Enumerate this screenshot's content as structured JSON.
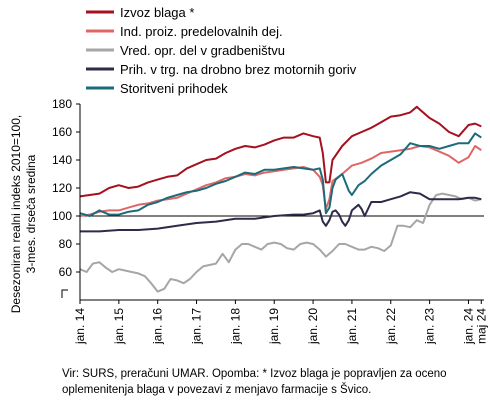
{
  "chart_data": {
    "type": "line",
    "ylabel": "Desezoniran realni indeks 2010=100,\n3-mes. drseča sredina",
    "ylim": [
      40,
      180
    ],
    "yticks": [
      60,
      80,
      100,
      120,
      140,
      160,
      180
    ],
    "xlim": [
      2014.0,
      2024.4
    ],
    "xticks": [
      {
        "x": 2014.0,
        "label": "jan. 14"
      },
      {
        "x": 2015.0,
        "label": "jan. 15"
      },
      {
        "x": 2016.0,
        "label": "jan. 16"
      },
      {
        "x": 2017.0,
        "label": "jan. 17"
      },
      {
        "x": 2018.0,
        "label": "jan. 18"
      },
      {
        "x": 2019.0,
        "label": "jan. 19"
      },
      {
        "x": 2020.0,
        "label": "jan. 20"
      },
      {
        "x": 2021.0,
        "label": "jan. 21"
      },
      {
        "x": 2022.0,
        "label": "jan. 22"
      },
      {
        "x": 2023.0,
        "label": "jan. 23"
      },
      {
        "x": 2024.0,
        "label": "jan. 24"
      },
      {
        "x": 2024.33,
        "label": "maj 24"
      }
    ],
    "reference_line": 100,
    "series": [
      {
        "name": "Izvoz blaga *",
        "color": "#a5111f",
        "x": [
          2014.0,
          2014.25,
          2014.5,
          2014.75,
          2015.0,
          2015.25,
          2015.5,
          2015.75,
          2016.0,
          2016.25,
          2016.5,
          2016.75,
          2017.0,
          2017.25,
          2017.5,
          2017.75,
          2018.0,
          2018.25,
          2018.5,
          2018.75,
          2019.0,
          2019.25,
          2019.5,
          2019.75,
          2020.0,
          2020.17,
          2020.25,
          2020.33,
          2020.42,
          2020.5,
          2020.75,
          2021.0,
          2021.25,
          2021.5,
          2021.75,
          2022.0,
          2022.25,
          2022.5,
          2022.67,
          2022.75,
          2023.0,
          2023.25,
          2023.5,
          2023.75,
          2024.0,
          2024.17,
          2024.33
        ],
        "y": [
          114,
          115,
          116,
          120,
          122,
          120,
          121,
          124,
          126,
          128,
          129,
          134,
          137,
          140,
          141,
          145,
          148,
          150,
          149,
          151,
          154,
          156,
          156,
          159,
          157,
          156,
          145,
          124,
          124,
          140,
          150,
          157,
          160,
          163,
          167,
          171,
          172,
          174,
          178,
          176,
          170,
          166,
          160,
          157,
          165,
          166,
          164
        ]
      },
      {
        "name": "Ind. proiz. predelovalnih dej.",
        "color": "#e06666",
        "x": [
          2014.0,
          2014.25,
          2014.5,
          2014.75,
          2015.0,
          2015.25,
          2015.5,
          2015.75,
          2016.0,
          2016.25,
          2016.5,
          2016.75,
          2017.0,
          2017.25,
          2017.5,
          2017.75,
          2018.0,
          2018.25,
          2018.5,
          2018.75,
          2019.0,
          2019.25,
          2019.5,
          2019.75,
          2020.0,
          2020.17,
          2020.25,
          2020.33,
          2020.42,
          2020.5,
          2020.75,
          2021.0,
          2021.25,
          2021.5,
          2021.75,
          2022.0,
          2022.25,
          2022.5,
          2022.75,
          2023.0,
          2023.25,
          2023.5,
          2023.75,
          2024.0,
          2024.17,
          2024.33
        ],
        "y": [
          100,
          101,
          103,
          104,
          104,
          106,
          108,
          109,
          111,
          112,
          113,
          116,
          119,
          122,
          124,
          127,
          128,
          130,
          129,
          131,
          132,
          133,
          134,
          135,
          133,
          128,
          122,
          105,
          112,
          125,
          130,
          136,
          138,
          141,
          145,
          146,
          147,
          148,
          150,
          149,
          146,
          143,
          138,
          142,
          150,
          147
        ]
      },
      {
        "name": "Vred. opr. del v gradbeništvu",
        "color": "#a6a6a6",
        "x": [
          2014.0,
          2014.17,
          2014.33,
          2014.5,
          2014.67,
          2014.83,
          2015.0,
          2015.17,
          2015.33,
          2015.5,
          2015.67,
          2015.83,
          2016.0,
          2016.17,
          2016.33,
          2016.5,
          2016.67,
          2016.83,
          2017.0,
          2017.17,
          2017.33,
          2017.5,
          2017.67,
          2017.83,
          2018.0,
          2018.17,
          2018.33,
          2018.5,
          2018.67,
          2018.83,
          2019.0,
          2019.17,
          2019.33,
          2019.5,
          2019.67,
          2019.83,
          2020.0,
          2020.17,
          2020.33,
          2020.5,
          2020.67,
          2020.83,
          2021.0,
          2021.17,
          2021.33,
          2021.5,
          2021.67,
          2021.83,
          2022.0,
          2022.17,
          2022.33,
          2022.5,
          2022.67,
          2022.83,
          2023.0,
          2023.17,
          2023.33,
          2023.5,
          2023.67,
          2023.83,
          2024.0,
          2024.17,
          2024.33
        ],
        "y": [
          62,
          60,
          66,
          67,
          63,
          60,
          62,
          61,
          60,
          59,
          57,
          52,
          46,
          48,
          55,
          54,
          52,
          55,
          60,
          64,
          65,
          66,
          73,
          67,
          76,
          80,
          80,
          78,
          76,
          80,
          81,
          80,
          77,
          76,
          80,
          81,
          80,
          76,
          71,
          75,
          80,
          80,
          78,
          76,
          76,
          78,
          77,
          75,
          79,
          93,
          93,
          92,
          97,
          95,
          108,
          115,
          116,
          115,
          114,
          112,
          113,
          111,
          112
        ]
      },
      {
        "name": "Prih. v trg. na drobno brez motornih goriv",
        "color": "#2d2a4a",
        "x": [
          2014.0,
          2014.5,
          2015.0,
          2015.5,
          2016.0,
          2016.5,
          2017.0,
          2017.5,
          2018.0,
          2018.5,
          2019.0,
          2019.5,
          2019.75,
          2020.0,
          2020.17,
          2020.25,
          2020.33,
          2020.42,
          2020.5,
          2020.58,
          2020.67,
          2020.75,
          2020.83,
          2020.92,
          2021.0,
          2021.17,
          2021.25,
          2021.33,
          2021.5,
          2021.75,
          2022.0,
          2022.25,
          2022.5,
          2022.75,
          2023.0,
          2023.25,
          2023.5,
          2023.75,
          2024.0,
          2024.17,
          2024.33
        ],
        "y": [
          89,
          89,
          90,
          90,
          91,
          93,
          95,
          96,
          98,
          98,
          100,
          101,
          101,
          102,
          104,
          96,
          93,
          97,
          103,
          104,
          101,
          96,
          93,
          97,
          104,
          108,
          105,
          100,
          110,
          110,
          112,
          114,
          117,
          116,
          112,
          112,
          112,
          112,
          113,
          113,
          112
        ]
      },
      {
        "name": "Storitveni prihodek",
        "color": "#1b6b7a",
        "x": [
          2014.0,
          2014.25,
          2014.5,
          2014.75,
          2015.0,
          2015.25,
          2015.5,
          2015.75,
          2016.0,
          2016.25,
          2016.5,
          2016.75,
          2017.0,
          2017.25,
          2017.5,
          2017.75,
          2018.0,
          2018.25,
          2018.5,
          2018.75,
          2019.0,
          2019.25,
          2019.5,
          2019.75,
          2020.0,
          2020.17,
          2020.25,
          2020.33,
          2020.42,
          2020.5,
          2020.58,
          2020.75,
          2020.92,
          2021.0,
          2021.17,
          2021.33,
          2021.5,
          2021.75,
          2022.0,
          2022.25,
          2022.5,
          2022.75,
          2023.0,
          2023.25,
          2023.5,
          2023.75,
          2024.0,
          2024.17,
          2024.33
        ],
        "y": [
          102,
          100,
          104,
          101,
          101,
          103,
          104,
          108,
          110,
          113,
          115,
          117,
          118,
          120,
          123,
          125,
          128,
          131,
          130,
          133,
          133,
          134,
          135,
          134,
          133,
          134,
          126,
          102,
          106,
          120,
          126,
          130,
          118,
          115,
          122,
          125,
          130,
          136,
          140,
          144,
          152,
          150,
          150,
          148,
          150,
          152,
          152,
          159,
          156
        ]
      }
    ]
  },
  "footnote": "Vir: SURS, preračuni UMAR. Opomba: * Izvoz blaga je popravljen za oceno oplemenitenja blaga v povezavi z menjavo farmacije s Švico."
}
